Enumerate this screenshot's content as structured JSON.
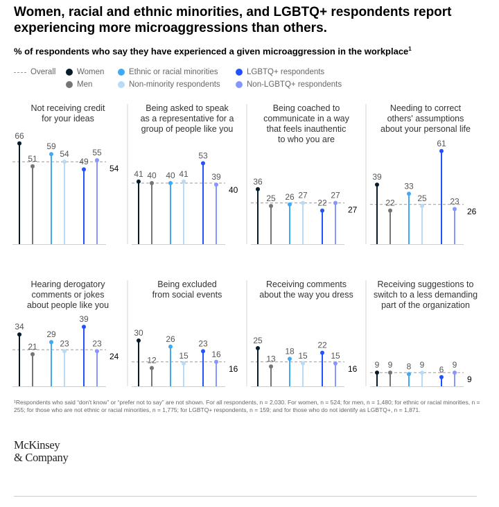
{
  "title": "Women, racial and ethnic minorities, and LGBTQ+ respondents report experiencing more microaggressions than others.",
  "subtitle": "% of respondents who say they have experienced a given microaggression in the workplace",
  "subtitle_sup": "1",
  "legend": {
    "overall": "Overall",
    "women": "Women",
    "men": "Men",
    "ethnic": "Ethnic or racial minorities",
    "nonminority": "Non-minority respondents",
    "lgbtq": "LGBTQ+ respondents",
    "nonlgbtq": "Non-LGBTQ+ respondents"
  },
  "colors": {
    "women": "#051c2c",
    "men": "#757575",
    "ethnic": "#3fa9f5",
    "nonminority": "#b8dcf7",
    "lgbtq": "#2251ff",
    "nonlgbtq": "#8597ff",
    "overall": "#999999"
  },
  "chart_data": [
    {
      "type": "lollipop",
      "title": "Not receiving credit for your ideas",
      "series": [
        "Women",
        "Men",
        "Ethnic or racial minorities",
        "Non-minority respondents",
        "LGBTQ+ respondents",
        "Non-LGBTQ+ respondents"
      ],
      "values": [
        66,
        51,
        59,
        54,
        49,
        55
      ],
      "overall": 54
    },
    {
      "type": "lollipop",
      "title": "Being asked to speak as a representative for a group of people like you",
      "series": [
        "Women",
        "Men",
        "Ethnic or racial minorities",
        "Non-minority respondents",
        "LGBTQ+ respondents",
        "Non-LGBTQ+ respondents"
      ],
      "values": [
        41,
        40,
        40,
        41,
        53,
        39
      ],
      "overall": 40
    },
    {
      "type": "lollipop",
      "title": "Being coached to communicate in a way that feels inauthentic to who you are",
      "series": [
        "Women",
        "Men",
        "Ethnic or racial minorities",
        "Non-minority respondents",
        "LGBTQ+ respondents",
        "Non-LGBTQ+ respondents"
      ],
      "values": [
        36,
        25,
        26,
        27,
        22,
        27
      ],
      "overall": 27
    },
    {
      "type": "lollipop",
      "title": "Needing to correct others' assumptions about your personal life",
      "series": [
        "Women",
        "Men",
        "Ethnic or racial minorities",
        "Non-minority respondents",
        "LGBTQ+ respondents",
        "Non-LGBTQ+ respondents"
      ],
      "values": [
        39,
        22,
        33,
        25,
        61,
        23
      ],
      "overall": 26
    },
    {
      "type": "lollipop",
      "title": "Hearing derogatory comments or jokes about people like you",
      "series": [
        "Women",
        "Men",
        "Ethnic or racial minorities",
        "Non-minority respondents",
        "LGBTQ+ respondents",
        "Non-LGBTQ+ respondents"
      ],
      "values": [
        34,
        21,
        29,
        23,
        39,
        23
      ],
      "overall": 24
    },
    {
      "type": "lollipop",
      "title": "Being excluded from social events",
      "series": [
        "Women",
        "Men",
        "Ethnic or racial minorities",
        "Non-minority respondents",
        "LGBTQ+ respondents",
        "Non-LGBTQ+ respondents"
      ],
      "values": [
        30,
        12,
        26,
        15,
        23,
        16
      ],
      "overall": 16
    },
    {
      "type": "lollipop",
      "title": "Receiving comments about the way you dress",
      "series": [
        "Women",
        "Men",
        "Ethnic or racial minorities",
        "Non-minority respondents",
        "LGBTQ+ respondents",
        "Non-LGBTQ+ respondents"
      ],
      "values": [
        25,
        13,
        18,
        15,
        22,
        15
      ],
      "overall": 16
    },
    {
      "type": "lollipop",
      "title": "Receiving suggestions to switch to a less demanding part of the organization",
      "series": [
        "Women",
        "Men",
        "Ethnic or racial minorities",
        "Non-minority respondents",
        "LGBTQ+ respondents",
        "Non-LGBTQ+ respondents"
      ],
      "values": [
        9,
        9,
        8,
        9,
        6,
        9
      ],
      "overall": 9
    }
  ],
  "panel_titles": [
    [
      "Not receiving credit",
      "for your ideas"
    ],
    [
      "Being asked to speak",
      "as a representative for a",
      "group of people like you"
    ],
    [
      "Being coached to",
      "communicate in a way",
      "that feels inauthentic",
      "to who you are"
    ],
    [
      "Needing to correct",
      "others' assumptions",
      "about your personal life"
    ],
    [
      "Hearing derogatory",
      "comments or jokes",
      "about people like you"
    ],
    [
      "Being excluded",
      "from social events"
    ],
    [
      "Receiving comments",
      "about the way you dress"
    ],
    [
      "Receiving suggestions to",
      "switch to a less demanding",
      "part of the organization"
    ]
  ],
  "footnote": "¹Respondents who said “don't know” or “prefer not to say” are not shown. For all respondents, n = 2,030. For women, n = 524; for men, n = 1,480; for ethnic or racial minorities, n = 255; for those who are not ethnic or racial minorities, n = 1,775; for LGBTQ+ respondents, n = 159; and for those who do not identify as LGBTQ+, n = 1,871.",
  "logo": {
    "line1": "McKinsey",
    "line2": "& Company"
  }
}
